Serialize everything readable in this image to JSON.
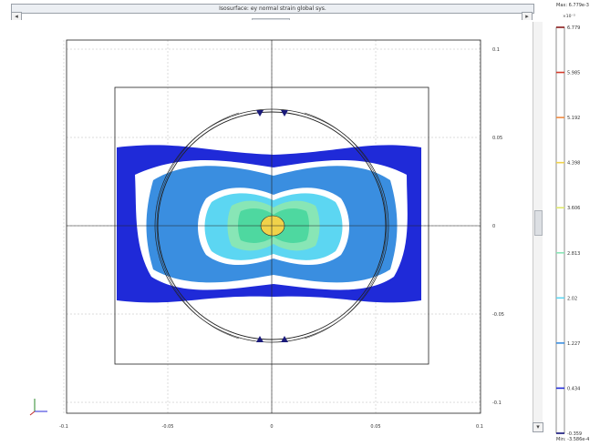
{
  "window": {
    "title": "Isosurface: ey normal strain global sys.",
    "scroll_left_glyph": "◂",
    "scroll_right_glyph": "▸",
    "scroll_down_glyph": "▾"
  },
  "plot": {
    "x_ticks": [
      "-0.1",
      "-0.05",
      "0",
      "0.05",
      "0.1"
    ],
    "x_tick_values": [
      -0.1,
      -0.05,
      0,
      0.05,
      0.1
    ],
    "y_ticks": [
      "0.1",
      "0.05",
      "0",
      "-0.05",
      "-0.1"
    ],
    "y_tick_values": [
      0.1,
      0.05,
      0,
      -0.05,
      -0.1
    ],
    "xlim": [
      -0.11,
      0.11
    ],
    "ylim": [
      -0.1,
      0.1
    ]
  },
  "legend": {
    "max_label": "Max: 6.779e-3",
    "min_label": "Min: -3.586e-4",
    "exponent_label": "×10⁻³",
    "levels": [
      {
        "value": "6.779",
        "color": "#8b1a1a"
      },
      {
        "value": "5.985",
        "color": "#d43a2a"
      },
      {
        "value": "5.192",
        "color": "#f08a40"
      },
      {
        "value": "4.398",
        "color": "#f0d24a"
      },
      {
        "value": "3.606",
        "color": "#dfe86a"
      },
      {
        "value": "2.813",
        "color": "#88e6b6"
      },
      {
        "value": "2.02",
        "color": "#5cd6f2"
      },
      {
        "value": "1.227",
        "color": "#3a8ee0"
      },
      {
        "value": "0.434",
        "color": "#1f2ad8"
      },
      {
        "value": "-0.359",
        "color": "#10107a"
      }
    ]
  }
}
